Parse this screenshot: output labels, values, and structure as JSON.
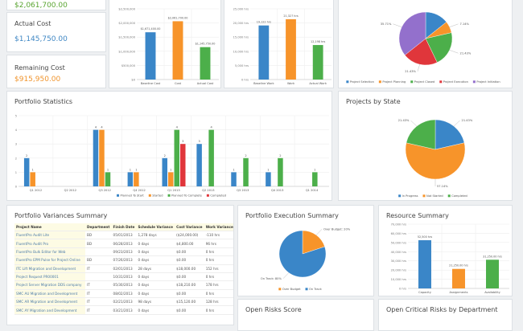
{
  "kpis": [
    {
      "label": "",
      "value": "$2,061,700.00",
      "color": "#5aa532"
    },
    {
      "label": "Actual Cost",
      "value": "$1,145,750.00",
      "color": "#3f87c4"
    },
    {
      "label": "Remaining Cost",
      "value": "$915,950.00",
      "color": "#f0952e"
    }
  ],
  "colors": {
    "blue": "#3a86c8",
    "orange": "#f7942a",
    "green": "#4caf4a",
    "red": "#e0363b",
    "purple": "#9370cc"
  },
  "chart_data": [
    {
      "id": "cost",
      "type": "bar",
      "categories": [
        "Baseline Cost",
        "Cost",
        "Actual Cost"
      ],
      "values": [
        1671400,
        2061700,
        1145750
      ],
      "data_labels": [
        "$1,671,400.00",
        "$2,061,700.00",
        "$1,145,750.00"
      ],
      "ticks": [
        "$0",
        "$500,000",
        "$1,000,000",
        "$1,500,000",
        "$2,000,000",
        "$2,500,000"
      ],
      "ylim": [
        0,
        2500000
      ],
      "colors": [
        "blue",
        "orange",
        "green"
      ]
    },
    {
      "id": "work",
      "type": "bar",
      "categories": [
        "Baseline Work",
        "Work",
        "Actual Work"
      ],
      "values": [
        19122,
        21327,
        12198
      ],
      "data_labels": [
        "19,122 hrs",
        "21,327 hrs",
        "12,198 hrs"
      ],
      "ticks": [
        "0 hrs",
        "5,000 hrs",
        "10,000 hrs",
        "15,000 hrs",
        "20,000 hrs",
        "25,000 hrs"
      ],
      "ylim": [
        0,
        25000
      ],
      "colors": [
        "blue",
        "orange",
        "green"
      ]
    },
    {
      "id": "phase",
      "type": "pie",
      "labels": [
        "Project Selection",
        "Project Planning",
        "Project Closed",
        "Project Execution",
        "Project Initiation"
      ],
      "values": [
        14.29,
        7.14,
        21.43,
        21.43,
        35.71
      ],
      "data_labels": [
        "",
        "7.14%",
        "21.43%",
        "21.43%",
        "35.71%"
      ],
      "colors": [
        "blue",
        "orange",
        "green",
        "red",
        "purple"
      ],
      "legend": "bottom"
    },
    {
      "id": "stats",
      "type": "bar",
      "title": "Portfolio Statistics",
      "categories": [
        "Q1 2012",
        "Q2 2012",
        "Q3 2012",
        "Q4 2012",
        "Q1 2013",
        "Q2 2013",
        "Q3 2013",
        "Q4 2013",
        "Q1 2014"
      ],
      "ylim": [
        0,
        5
      ],
      "ticks": [
        "0",
        "1",
        "2",
        "3",
        "4",
        "5"
      ],
      "grid": true,
      "legend": "bottom",
      "series": [
        {
          "name": "Planned To Start",
          "color": "blue",
          "values": [
            2,
            0,
            4,
            1,
            2,
            3,
            1,
            1,
            0
          ]
        },
        {
          "name": "Started",
          "color": "orange",
          "values": [
            1,
            0,
            4,
            1,
            1,
            0,
            0,
            0,
            0
          ]
        },
        {
          "name": "Planned To Complete",
          "color": "green",
          "values": [
            0,
            0,
            1,
            0,
            4,
            4,
            2,
            2,
            1
          ]
        },
        {
          "name": "Completed",
          "color": "red",
          "values": [
            0,
            0,
            0,
            0,
            3,
            0,
            0,
            0,
            0
          ]
        }
      ]
    },
    {
      "id": "state",
      "type": "pie",
      "title": "Projects by State",
      "labels": [
        "In Progress",
        "Not Started",
        "Completed"
      ],
      "values": [
        21.43,
        57.14,
        21.43
      ],
      "data_labels": [
        "21.43%",
        "57.14%",
        "21.43%"
      ],
      "colors": [
        "blue",
        "orange",
        "green"
      ],
      "legend": "bottom"
    },
    {
      "id": "exec",
      "type": "pie",
      "title": "Portfolio Execution Summary",
      "labels": [
        "Over Budget",
        "On Track"
      ],
      "values": [
        20,
        80
      ],
      "data_labels": [
        "Over Budget: 20%",
        "On Track: 80%"
      ],
      "colors": [
        "orange",
        "blue"
      ],
      "legend": "bottom"
    },
    {
      "id": "res",
      "type": "bar",
      "title": "Resource Summary",
      "categories": [
        "Capacity",
        "Assignments",
        "Availability"
      ],
      "values": [
        52500,
        21250,
        31250
      ],
      "data_labels": [
        "52,500 hrs",
        "21,250.00 hrs",
        "31,250.00 hrs"
      ],
      "ticks": [
        "0 hrs",
        "10,000 hrs",
        "20,000 hrs",
        "30,000 hrs",
        "40,000 hrs",
        "50,000 hrs",
        "60,000 hrs",
        "70,000 hrs"
      ],
      "ylim": [
        0,
        70000
      ],
      "colors": [
        "blue",
        "orange",
        "green"
      ]
    }
  ],
  "variances": {
    "title": "Portfolio Variances Summary",
    "columns": [
      "Project Name",
      "Department",
      "Finish Date",
      "Schedule Variance",
      "Cost Variance",
      "Work Variance"
    ],
    "rows": [
      [
        "FluentPro Audit Lite",
        "BD",
        "05/01/2013",
        "1,278 days",
        "($24,000.00)",
        "-110 hrs"
      ],
      [
        "FluentPro Audit Pro",
        "BD",
        "06/28/2013",
        "0 days",
        "$4,800.00",
        "96 hrs"
      ],
      [
        "FluentPro Bulk Editor for Web",
        "",
        "09/23/2013",
        "0 days",
        "$0.00",
        "0 hrs"
      ],
      [
        "FluentPro EPM Pulse for Project Online",
        "BD",
        "07/26/2013",
        "0 days",
        "$0.00",
        "0 hrs"
      ],
      [
        "ITC Lift Migration and Development",
        "IT",
        "02/01/2013",
        "28 days",
        "$18,000.00",
        "152 hrs"
      ],
      [
        "Project Request PR00001",
        "",
        "10/31/2013",
        "0 days",
        "$0.00",
        "0 hrs"
      ],
      [
        "Project Server Migration DDS company",
        "IT",
        "05/30/2013",
        "0 days",
        "$18,210.00",
        "178 hrs"
      ],
      [
        "SMC AU Migration and Development",
        "IT",
        "08/02/2013",
        "0 days",
        "$0.00",
        "0 hrs"
      ],
      [
        "SMC AR Migration and Development",
        "IT",
        "02/21/2013",
        "98 days",
        "$15,120.00",
        "128 hrs"
      ],
      [
        "SMC AY Migration and Development",
        "IT",
        "03/21/2013",
        "0 days",
        "$0.00",
        "0 hrs"
      ]
    ]
  },
  "risks": {
    "title": "Open Risks Score"
  },
  "critical": {
    "title": "Open Critical Risks by Department"
  }
}
